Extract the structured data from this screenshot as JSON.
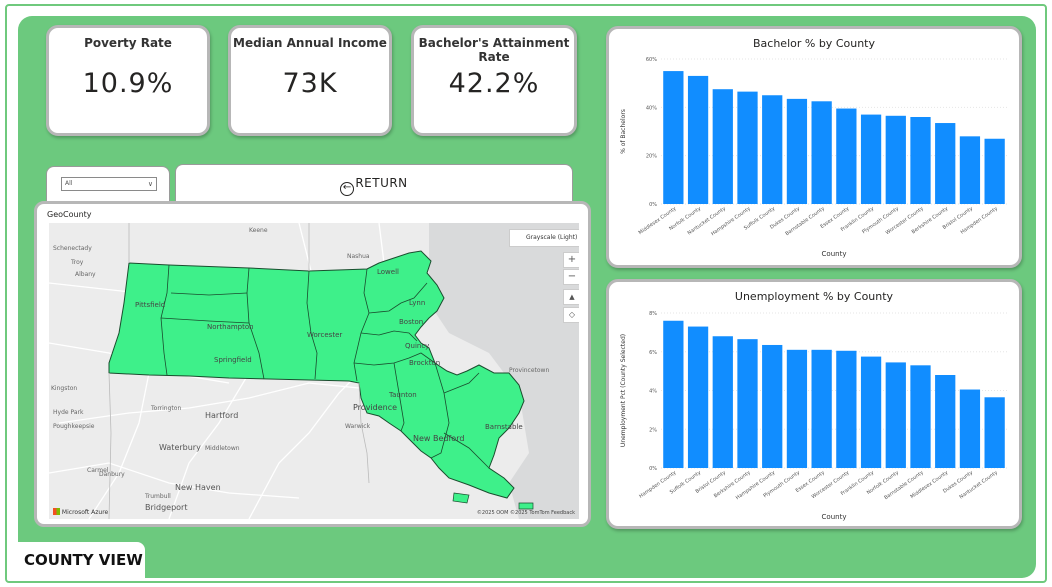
{
  "kpis": [
    {
      "title": "Poverty Rate",
      "value": "10.9%"
    },
    {
      "title": "Median Annual Income",
      "value": "73K"
    },
    {
      "title": "Bachelor's Attainment Rate",
      "value": "42.2%"
    }
  ],
  "slicer": {
    "value": "All"
  },
  "return_button": {
    "label": "RETURN"
  },
  "map": {
    "title": "GeoCounty",
    "style_label": "Grayscale (Light)",
    "attribution": "Microsoft Azure",
    "copyright": "©2025 OOM ©2025 TomTom Feedback",
    "places": [
      {
        "name": "Pittsfield"
      },
      {
        "name": "Northampton"
      },
      {
        "name": "Springfield"
      },
      {
        "name": "Worcester"
      },
      {
        "name": "Lowell"
      },
      {
        "name": "Lynn"
      },
      {
        "name": "Boston"
      },
      {
        "name": "Quincy"
      },
      {
        "name": "Brockton"
      },
      {
        "name": "Taunton"
      },
      {
        "name": "Providence"
      },
      {
        "name": "New Bedford"
      },
      {
        "name": "Barnstable"
      },
      {
        "name": "Hartford"
      },
      {
        "name": "Waterbury"
      },
      {
        "name": "New Haven"
      },
      {
        "name": "Bridgeport"
      },
      {
        "name": "Torrington"
      },
      {
        "name": "Danbury"
      },
      {
        "name": "Poughkeepsie"
      },
      {
        "name": "Hyde Park"
      },
      {
        "name": "Kingston"
      },
      {
        "name": "Albany"
      },
      {
        "name": "Schenectady"
      },
      {
        "name": "Troy"
      },
      {
        "name": "Keene"
      },
      {
        "name": "Nashua"
      },
      {
        "name": "Warwick"
      },
      {
        "name": "Middletown"
      },
      {
        "name": "Provincetown"
      },
      {
        "name": "Trumbull"
      },
      {
        "name": "Carmel"
      }
    ]
  },
  "charts": {
    "bachelor": {
      "type": "bar",
      "title": "Bachelor % by County",
      "xlabel": "County",
      "ylabel": "% of Bachelors",
      "ticks": [
        "0%",
        "20%",
        "40%",
        "60%"
      ],
      "ylim": [
        0,
        60
      ],
      "categories": [
        "Middlesex County",
        "Norfolk County",
        "Nantucket County",
        "Hampshire County",
        "Suffolk County",
        "Dukes County",
        "Barnstable County",
        "Essex County",
        "Franklin County",
        "Plymouth County",
        "Worcester County",
        "Berkshire County",
        "Bristol County",
        "Hampden County"
      ],
      "values": [
        55,
        53,
        47.5,
        46.5,
        45,
        43.5,
        42.5,
        39.5,
        37,
        36.5,
        36,
        33.5,
        28,
        27
      ],
      "color": "#118dff"
    },
    "unemployment": {
      "type": "bar",
      "title": "Unemployment % by County",
      "xlabel": "County",
      "ylabel": "Unemployment Pct (County Selected)",
      "ticks": [
        "0%",
        "2%",
        "4%",
        "6%",
        "8%"
      ],
      "ylim": [
        0,
        8
      ],
      "categories": [
        "Hampden County",
        "Suffolk County",
        "Bristol County",
        "Berkshire County",
        "Hampshire County",
        "Plymouth County",
        "Essex County",
        "Worcester County",
        "Franklin County",
        "Norfolk County",
        "Barnstable County",
        "Middlesex County",
        "Dukes County",
        "Nantucket County"
      ],
      "values": [
        7.6,
        7.3,
        6.8,
        6.65,
        6.35,
        6.1,
        6.1,
        6.05,
        5.75,
        5.45,
        5.3,
        4.8,
        4.05,
        3.65
      ],
      "color": "#118dff"
    }
  },
  "footer": {
    "label": "COUNTY VIEW"
  }
}
